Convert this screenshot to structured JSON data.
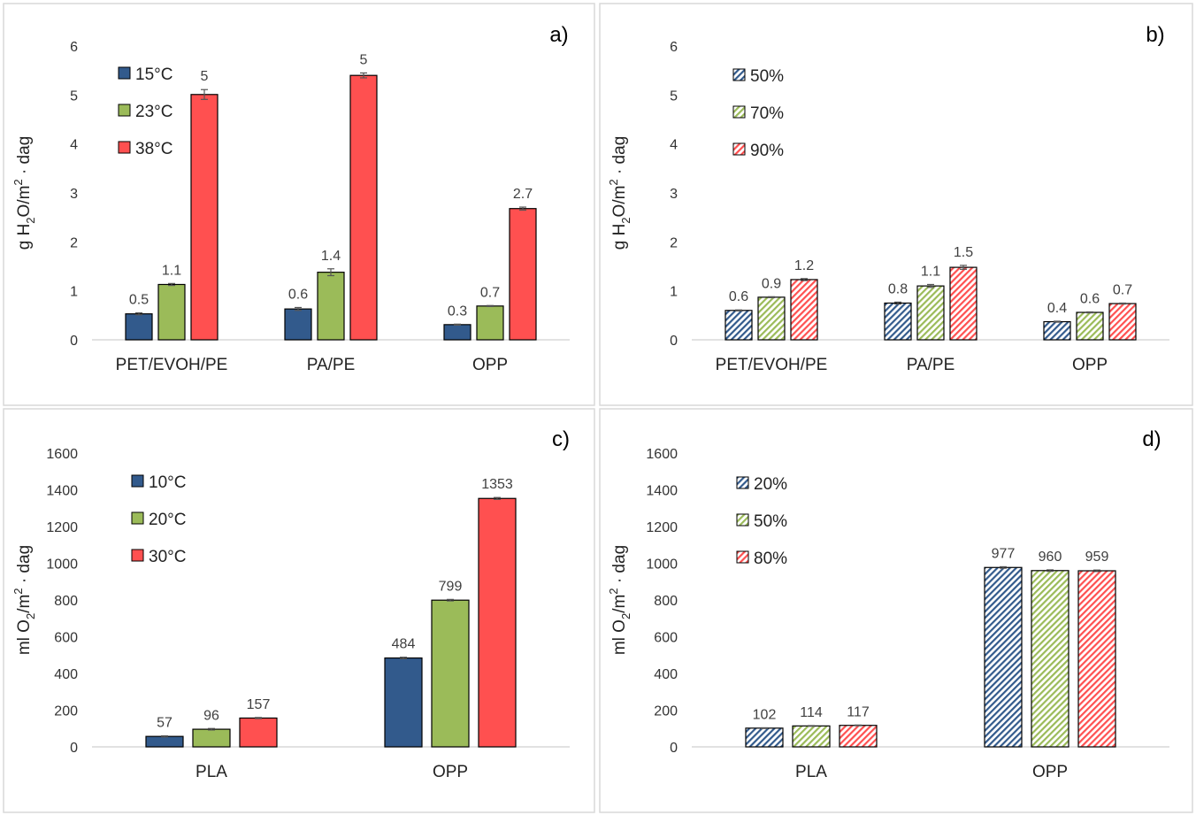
{
  "colors": {
    "blue": "#325A8C",
    "green": "#9BBB59",
    "red": "#FF5050",
    "panel_border": "#d9d9d9"
  },
  "chart_data": [
    {
      "panel": "a)",
      "type": "bar",
      "hatched": false,
      "ylabel_main": "g H",
      "ylabel_sub": "2",
      "ylabel_mid": "O/m",
      "ylabel_sup": "2",
      "ylabel_tail": " · dag",
      "ylim": [
        0,
        6
      ],
      "yticks": [
        "0",
        "1",
        "2",
        "3",
        "4",
        "5",
        "6"
      ],
      "categories": [
        "PET/EVOH/PE",
        "PA/PE",
        "OPP"
      ],
      "legend_position": "top-left",
      "series": [
        {
          "name": "15°C",
          "color": "#325A8C",
          "values": [
            0.53,
            0.63,
            0.31
          ],
          "errors": [
            0.02,
            0.03,
            0.01
          ],
          "labels": [
            "0.5",
            "0.6",
            "0.3"
          ]
        },
        {
          "name": "23°C",
          "color": "#9BBB59",
          "values": [
            1.13,
            1.38,
            0.69
          ],
          "errors": [
            0.02,
            0.07,
            0.01
          ],
          "labels": [
            "1.1",
            "1.4",
            "0.7"
          ]
        },
        {
          "name": "38°C",
          "color": "#FF5050",
          "values": [
            5.01,
            5.4,
            2.68
          ],
          "errors": [
            0.1,
            0.05,
            0.03
          ],
          "labels": [
            "5",
            "5",
            "2.7"
          ]
        }
      ]
    },
    {
      "panel": "b)",
      "type": "bar",
      "hatched": true,
      "ylabel_main": "g H",
      "ylabel_sub": "2",
      "ylabel_mid": "O/m",
      "ylabel_sup": "2",
      "ylabel_tail": " · dag",
      "ylim": [
        0,
        6
      ],
      "yticks": [
        "0",
        "1",
        "2",
        "3",
        "4",
        "5",
        "6"
      ],
      "categories": [
        "PET/EVOH/PE",
        "PA/PE",
        "OPP"
      ],
      "legend_position": "top-left",
      "series": [
        {
          "name": "50%",
          "color": "#325A8C",
          "values": [
            0.6,
            0.75,
            0.37
          ],
          "errors": [
            0.01,
            0.02,
            0.01
          ],
          "labels": [
            "0.6",
            "0.8",
            "0.4"
          ]
        },
        {
          "name": "70%",
          "color": "#9BBB59",
          "values": [
            0.87,
            1.1,
            0.56
          ],
          "errors": [
            0.01,
            0.03,
            0.01
          ],
          "labels": [
            "0.9",
            "1.1",
            "0.6"
          ]
        },
        {
          "name": "90%",
          "color": "#FF5050",
          "values": [
            1.23,
            1.48,
            0.74
          ],
          "errors": [
            0.02,
            0.04,
            0.01
          ],
          "labels": [
            "1.2",
            "1.5",
            "0.7"
          ]
        }
      ]
    },
    {
      "panel": "c)",
      "type": "bar",
      "hatched": false,
      "ylabel_main": "ml O",
      "ylabel_sub": "2",
      "ylabel_mid": "/m",
      "ylabel_sup": "2",
      "ylabel_tail": " · dag",
      "ylim": [
        0,
        1600
      ],
      "yticks": [
        "0",
        "200",
        "400",
        "600",
        "800",
        "1000",
        "1200",
        "1400",
        "1600"
      ],
      "categories": [
        "PLA",
        "OPP"
      ],
      "legend_position": "top-left",
      "series": [
        {
          "name": "10°C",
          "color": "#325A8C",
          "values": [
            57,
            484
          ],
          "errors": [
            3,
            4
          ],
          "labels": [
            "57",
            "484"
          ]
        },
        {
          "name": "20°C",
          "color": "#9BBB59",
          "values": [
            96,
            799
          ],
          "errors": [
            4,
            4
          ],
          "labels": [
            "96",
            "799"
          ]
        },
        {
          "name": "30°C",
          "color": "#FF5050",
          "values": [
            157,
            1353
          ],
          "errors": [
            3,
            5
          ],
          "labels": [
            "157",
            "1353"
          ]
        }
      ]
    },
    {
      "panel": "d)",
      "type": "bar",
      "hatched": true,
      "ylabel_main": "ml O",
      "ylabel_sub": "2",
      "ylabel_mid": "/m",
      "ylabel_sup": "2",
      "ylabel_tail": " · dag",
      "ylim": [
        0,
        1600
      ],
      "yticks": [
        "0",
        "200",
        "400",
        "600",
        "800",
        "1000",
        "1200",
        "1400",
        "1600"
      ],
      "categories": [
        "PLA",
        "OPP"
      ],
      "legend_position": "top-left",
      "series": [
        {
          "name": "20%",
          "color": "#325A8C",
          "values": [
            102,
            977
          ],
          "errors": [
            2,
            4
          ],
          "labels": [
            "102",
            "977"
          ]
        },
        {
          "name": "50%",
          "color": "#9BBB59",
          "values": [
            114,
            960
          ],
          "errors": [
            2,
            4
          ],
          "labels": [
            "114",
            "960"
          ]
        },
        {
          "name": "80%",
          "color": "#FF5050",
          "values": [
            117,
            959
          ],
          "errors": [
            2,
            4
          ],
          "labels": [
            "117",
            "959"
          ]
        }
      ]
    }
  ]
}
